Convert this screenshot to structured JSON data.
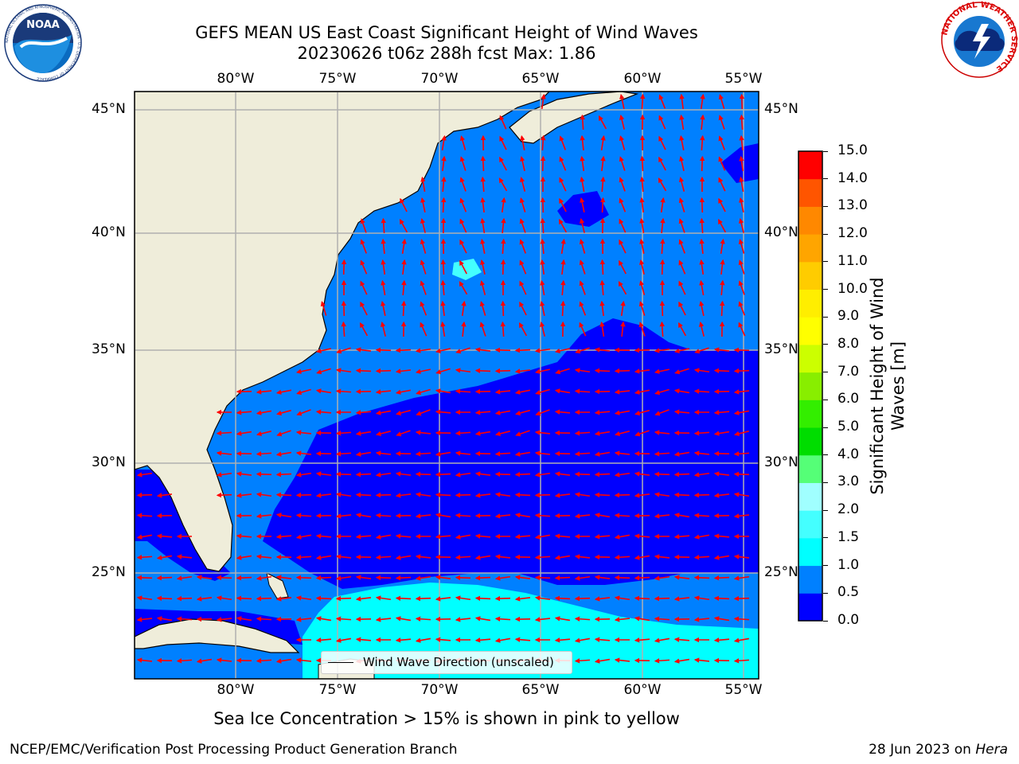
{
  "header": {
    "title_line1": "GEFS MEAN US East Coast Significant Height of Wind Waves",
    "title_line2": "20230626 t06z 288h fcst   Max: 1.86"
  },
  "logos": {
    "left": {
      "text": "NOAA",
      "ring_text": "NATIONAL OCEANIC AND ATMOSPHERIC ADMINISTRATION · U.S. DEPARTMENT OF COMMERCE"
    },
    "right": {
      "ring_text": "NATIONAL WEATHER SERVICE"
    }
  },
  "map": {
    "lon_labels": [
      "80°W",
      "75°W",
      "70°W",
      "65°W",
      "60°W",
      "55°W"
    ],
    "lat_labels": [
      "45°N",
      "40°N",
      "35°N",
      "30°N",
      "25°N"
    ],
    "lon_range": [
      -85,
      -54.3
    ],
    "lat_range": [
      20.5,
      46
    ],
    "gridlines": true,
    "colors": {
      "land": "#efedda",
      "c0": "#0000ff",
      "c05": "#0080ff",
      "c10": "#00ffff",
      "arrow": "#ff0000",
      "grid": "#b0b0b0"
    },
    "legend": {
      "label": "Wind Wave Direction (unscaled)"
    }
  },
  "colorbar": {
    "title_line1": "Significant Height of Wind",
    "title_line2": "Waves [m]",
    "levels": [
      "0.0",
      "0.5",
      "1.0",
      "1.5",
      "2.0",
      "3.0",
      "4.0",
      "5.0",
      "6.0",
      "7.0",
      "8.0",
      "9.0",
      "10.0",
      "11.0",
      "12.0",
      "13.0",
      "14.0",
      "15.0"
    ],
    "colors": [
      "#0000ff",
      "#0080ff",
      "#00ffff",
      "#44ffff",
      "#a0ffff",
      "#55ff77",
      "#00dd00",
      "#33ee00",
      "#88ee00",
      "#ccff00",
      "#ffff00",
      "#ffee00",
      "#ffcc00",
      "#ffa500",
      "#ff8800",
      "#ff5500",
      "#ff0000"
    ]
  },
  "footer": {
    "sea_ice_note": "Sea Ice Concentration > 15% is shown in pink to yellow",
    "credit": "NCEP/EMC/Verification Post Processing Product Generation Branch",
    "date": "28 Jun 2023 on",
    "machine": "Hera"
  }
}
